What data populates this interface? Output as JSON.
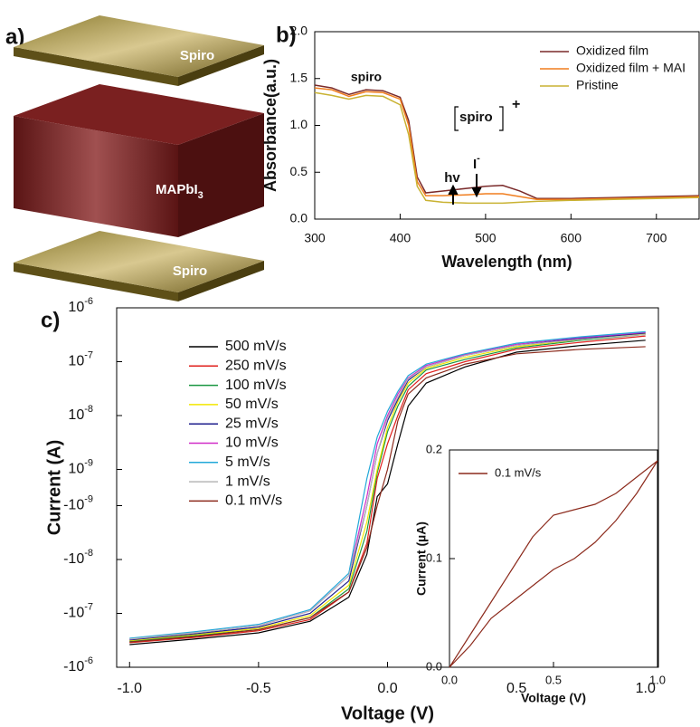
{
  "diagram": {
    "label": "a)",
    "layers": [
      "Spiro",
      {
        "label": "MAPbI",
        "subscript": "3"
      },
      "Spiro"
    ]
  },
  "chart_data": [
    {
      "type": "line",
      "label": "b)",
      "xlabel": "Wavelength (nm)",
      "ylabel": "Absorbance(a.u.)",
      "x": [
        300,
        320,
        340,
        360,
        380,
        400,
        410,
        420,
        430,
        450,
        480,
        500,
        520,
        540,
        560,
        600,
        650,
        700,
        750
      ],
      "series": [
        {
          "name": "Oxidized film",
          "color": "#7a2a2a",
          "values": [
            1.43,
            1.4,
            1.33,
            1.38,
            1.37,
            1.3,
            1.05,
            0.45,
            0.28,
            0.3,
            0.33,
            0.35,
            0.36,
            0.3,
            0.22,
            0.22,
            0.23,
            0.24,
            0.25
          ]
        },
        {
          "name": "Oxidized film + MAI",
          "color": "#f07d1e",
          "values": [
            1.4,
            1.38,
            1.31,
            1.36,
            1.35,
            1.28,
            1.0,
            0.4,
            0.25,
            0.25,
            0.26,
            0.27,
            0.27,
            0.24,
            0.21,
            0.21,
            0.22,
            0.23,
            0.24
          ]
        },
        {
          "name": "Pristine",
          "color": "#c9b232",
          "values": [
            1.35,
            1.32,
            1.28,
            1.32,
            1.31,
            1.22,
            0.9,
            0.35,
            0.2,
            0.18,
            0.17,
            0.17,
            0.17,
            0.18,
            0.19,
            0.2,
            0.21,
            0.22,
            0.23
          ]
        }
      ],
      "xlim": [
        300,
        750
      ],
      "xticks": [
        300,
        400,
        500,
        600,
        700
      ],
      "ylim": [
        0,
        2
      ],
      "yticks": [
        {
          "value": 0,
          "label": "0.0"
        },
        0.5,
        {
          "value": 1,
          "label": "1.0"
        },
        1.5,
        {
          "value": 2,
          "label": "2.0"
        }
      ],
      "grid": false,
      "legend": "upper right",
      "annotations": {
        "peak": "spiro",
        "cation": "spiro",
        "cation_charge": "+",
        "light": "hv",
        "iodide": "I",
        "iodide_charge": "-"
      }
    },
    {
      "type": "line",
      "label": "c)",
      "xlabel": "Voltage (V)",
      "ylabel": "Current (A)",
      "yscale": "symlog",
      "x": [
        -1,
        -0.75,
        -0.5,
        -0.3,
        -0.15,
        -0.08,
        -0.04,
        0,
        0.04,
        0.08,
        0.15,
        0.3,
        0.5,
        0.75,
        1
      ],
      "series": [
        {
          "name": "500 mV/s",
          "color": "#000000",
          "values": [
            -3.8e-07,
            -3e-07,
            -2.3e-07,
            -1.4e-07,
            -5e-08,
            -8e-09,
            -5e-10,
            2e-10,
            3e-09,
            1.5e-08,
            4e-08,
            8e-08,
            1.5e-07,
            2e-07,
            2.5e-07
          ]
        },
        {
          "name": "250 mV/s",
          "color": "#e0201c",
          "values": [
            -3.5e-07,
            -2.8e-07,
            -2.1e-07,
            -1.3e-07,
            -4e-08,
            -5e-09,
            5e-10,
            3e-09,
            1e-08,
            3e-08,
            6e-08,
            1e-07,
            1.7e-07,
            2.3e-07,
            3e-07
          ]
        },
        {
          "name": "100 mV/s",
          "color": "#1a9641",
          "values": [
            -3.3e-07,
            -2.6e-07,
            -2e-07,
            -1.2e-07,
            -3.5e-08,
            -3e-09,
            8e-10,
            5e-09,
            1.5e-08,
            3.5e-08,
            7e-08,
            1.1e-07,
            1.8e-07,
            2.5e-07,
            3.2e-07
          ]
        },
        {
          "name": "50 mV/s",
          "color": "#f2e600",
          "values": [
            -3.2e-07,
            -2.5e-07,
            -1.9e-07,
            -1.1e-07,
            -3e-08,
            -2e-09,
            1e-09,
            6e-09,
            1.8e-08,
            4e-08,
            7.5e-08,
            1.2e-07,
            1.9e-07,
            2.6e-07,
            3.3e-07
          ]
        },
        {
          "name": "25 mV/s",
          "color": "#1f1f8c",
          "values": [
            -3.1e-07,
            -2.4e-07,
            -1.8e-07,
            -1e-07,
            -2.5e-08,
            -1e-09,
            2e-09,
            8e-09,
            2e-08,
            4.5e-08,
            8e-08,
            1.3e-07,
            2e-07,
            2.7e-07,
            3.4e-07
          ]
        },
        {
          "name": "10 mV/s",
          "color": "#d02cc8",
          "values": [
            -3e-07,
            -2.3e-07,
            -1.7e-07,
            -9e-08,
            -2e-08,
            -5e-10,
            3e-09,
            1e-08,
            2.5e-08,
            5e-08,
            8.5e-08,
            1.35e-07,
            2.1e-07,
            2.8e-07,
            3.5e-07
          ]
        },
        {
          "name": "5 mV/s",
          "color": "#22a8d8",
          "values": [
            -2.9e-07,
            -2.2e-07,
            -1.6e-07,
            -8.5e-08,
            -1.8e-08,
            5e-10,
            4e-09,
            1.2e-08,
            2.8e-08,
            5.5e-08,
            9e-08,
            1.4e-07,
            2.2e-07,
            2.9e-07,
            3.6e-07
          ]
        },
        {
          "name": "1 mV/s",
          "color": "#b8b8b8",
          "values": [
            -3e-07,
            -2.3e-07,
            -1.7e-07,
            -9e-08,
            -2e-08,
            -1e-09,
            2e-09,
            9e-09,
            2.2e-08,
            4.8e-08,
            8e-08,
            1.3e-07,
            2e-07,
            2.6e-07,
            3.2e-07
          ]
        },
        {
          "name": "0.1 mV/s",
          "color": "#8c2a1c",
          "values": [
            -3.4e-07,
            -2.7e-07,
            -2e-07,
            -1.2e-07,
            -4e-08,
            -6e-09,
            -1e-09,
            1e-09,
            8e-09,
            2.5e-08,
            5e-08,
            9e-08,
            1.4e-07,
            1.7e-07,
            1.9e-07
          ]
        }
      ],
      "xlim": [
        -1.05,
        1.05
      ],
      "xticks": [
        {
          "value": -1,
          "label": "-1.0"
        },
        -0.5,
        {
          "value": 0,
          "label": "0.0"
        },
        0.5,
        {
          "value": 1,
          "label": "1.0"
        }
      ],
      "ylim": [
        -1e-06,
        1e-06
      ],
      "yticks": [
        {
          "value": 1e-06,
          "label": "10",
          "sup": "-6"
        },
        {
          "value": 1e-07,
          "label": "10",
          "sup": "-7"
        },
        {
          "value": 1e-08,
          "label": "10",
          "sup": "-8"
        },
        {
          "value": 1e-09,
          "label": "10",
          "sup": "-9"
        },
        {
          "value": -1e-09,
          "label": "-10",
          "sup": "-9"
        },
        {
          "value": -1e-08,
          "label": "-10",
          "sup": "-8"
        },
        {
          "value": -1e-07,
          "label": "-10",
          "sup": "-7"
        },
        {
          "value": -1e-06,
          "label": "-10",
          "sup": "-6"
        }
      ],
      "grid": false,
      "legend": "upper left"
    },
    {
      "type": "line",
      "xlabel": "Voltage (V)",
      "ylabel": "Current (µA)",
      "x": [
        0,
        0.1,
        0.2,
        0.3,
        0.4,
        0.5,
        0.55,
        0.6,
        0.7,
        0.8,
        0.9,
        1,
        0.9,
        0.8,
        0.7,
        0.6,
        0.5,
        0.4,
        0.3,
        0.2,
        0.1,
        0
      ],
      "series": [
        {
          "name": "0.1 mV/s",
          "color": "#8c2a1c",
          "values": [
            0,
            0.02,
            0.045,
            0.06,
            0.075,
            0.09,
            0.095,
            0.1,
            0.115,
            0.135,
            0.16,
            0.19,
            0.175,
            0.16,
            0.15,
            0.145,
            0.14,
            0.12,
            0.09,
            0.06,
            0.03,
            0
          ]
        }
      ],
      "xlim": [
        0,
        1
      ],
      "xticks": [
        {
          "value": 0,
          "label": "0.0"
        },
        0.5,
        {
          "value": 1,
          "label": "1.0"
        }
      ],
      "ylim": [
        0,
        0.2
      ],
      "yticks": [
        {
          "value": 0,
          "label": "0.0"
        },
        0.1,
        0.2
      ],
      "grid": false,
      "legend": "upper left"
    }
  ]
}
